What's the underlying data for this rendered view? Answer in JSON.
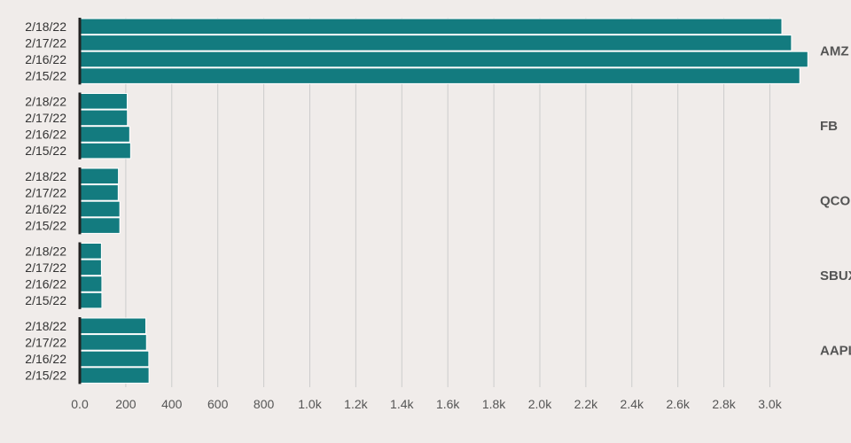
{
  "chart_data": {
    "type": "bar",
    "orientation": "horizontal",
    "bar_color": "#137b7f",
    "background": "#f0ecea",
    "grid": true,
    "xlim": [
      0,
      3160
    ],
    "x_ticks": [
      0,
      200,
      400,
      600,
      800,
      1000,
      1200,
      1400,
      1600,
      1800,
      2000,
      2200,
      2400,
      2600,
      2800,
      3000
    ],
    "x_tick_labels": [
      "0.0",
      "200",
      "400",
      "600",
      "800",
      "1.0k",
      "1.2k",
      "1.4k",
      "1.6k",
      "1.8k",
      "2.0k",
      "2.2k",
      "2.4k",
      "2.6k",
      "2.8k",
      "3.0k"
    ],
    "groups": [
      {
        "label": "AMZ",
        "bars": [
          {
            "date": "2/18/22",
            "value": 3052
          },
          {
            "date": "2/17/22",
            "value": 3094
          },
          {
            "date": "2/16/22",
            "value": 3165
          },
          {
            "date": "2/15/22",
            "value": 3130
          }
        ]
      },
      {
        "label": "FB",
        "bars": [
          {
            "date": "2/18/22",
            "value": 206
          },
          {
            "date": "2/17/22",
            "value": 207
          },
          {
            "date": "2/16/22",
            "value": 217
          },
          {
            "date": "2/15/22",
            "value": 221
          }
        ]
      },
      {
        "label": "QCO",
        "bars": [
          {
            "date": "2/18/22",
            "value": 168
          },
          {
            "date": "2/17/22",
            "value": 167
          },
          {
            "date": "2/16/22",
            "value": 174
          },
          {
            "date": "2/15/22",
            "value": 174
          }
        ]
      },
      {
        "label": "SBUX",
        "bars": [
          {
            "date": "2/18/22",
            "value": 94
          },
          {
            "date": "2/17/22",
            "value": 94
          },
          {
            "date": "2/16/22",
            "value": 96
          },
          {
            "date": "2/15/22",
            "value": 96
          }
        ]
      },
      {
        "label": "AAPL",
        "bars": [
          {
            "date": "2/18/22",
            "value": 287
          },
          {
            "date": "2/17/22",
            "value": 290
          },
          {
            "date": "2/16/22",
            "value": 300
          },
          {
            "date": "2/15/22",
            "value": 301
          }
        ]
      }
    ]
  }
}
